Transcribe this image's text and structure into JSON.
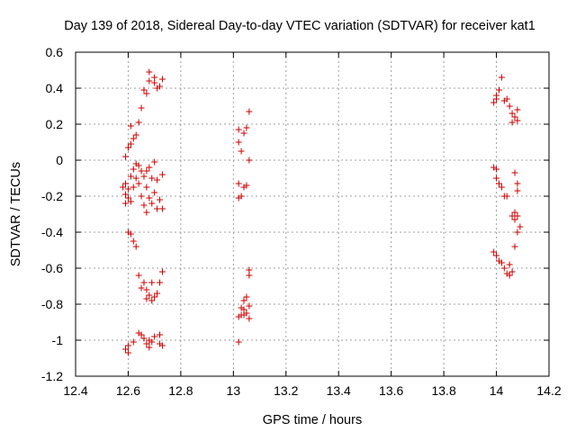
{
  "chart_data": {
    "type": "scatter",
    "title": "Day 139 of 2018, Sidereal Day-to-day VTEC variation (SDTVAR) for receiver kat1",
    "xlabel": "GPS time / hours",
    "ylabel": "SDTVAR / TECUs",
    "xlim": [
      12.4,
      14.2
    ],
    "ylim": [
      -1.2,
      0.6
    ],
    "grid": true,
    "marker": "+",
    "color": "#cc0000",
    "x_ticks": [
      "12.4",
      "12.6",
      "12.8",
      "13",
      "13.2",
      "13.4",
      "13.6",
      "13.8",
      "14",
      "14.2"
    ],
    "y_ticks": [
      "0.6",
      "0.4",
      "0.2",
      "0",
      "-0.2",
      "-0.4",
      "-0.6",
      "-0.8",
      "-1",
      "-1.2"
    ],
    "series": [
      {
        "name": "SDTVAR",
        "points": [
          [
            12.68,
            0.49
          ],
          [
            12.7,
            0.46
          ],
          [
            12.68,
            0.44
          ],
          [
            12.7,
            0.43
          ],
          [
            12.72,
            0.41
          ],
          [
            12.73,
            0.45
          ],
          [
            12.66,
            0.39
          ],
          [
            12.67,
            0.37
          ],
          [
            12.71,
            0.4
          ],
          [
            12.65,
            0.29
          ],
          [
            12.64,
            0.21
          ],
          [
            12.61,
            0.19
          ],
          [
            12.63,
            0.14
          ],
          [
            12.62,
            0.12
          ],
          [
            12.61,
            0.09
          ],
          [
            12.6,
            0.07
          ],
          [
            12.59,
            0.02
          ],
          [
            12.63,
            -0.02
          ],
          [
            12.64,
            -0.03
          ],
          [
            12.62,
            -0.05
          ],
          [
            12.65,
            -0.06
          ],
          [
            12.68,
            -0.04
          ],
          [
            12.7,
            -0.01
          ],
          [
            12.67,
            -0.06
          ],
          [
            12.61,
            -0.09
          ],
          [
            12.63,
            -0.1
          ],
          [
            12.66,
            -0.09
          ],
          [
            12.69,
            -0.1
          ],
          [
            12.71,
            -0.11
          ],
          [
            12.73,
            -0.08
          ],
          [
            12.59,
            -0.13
          ],
          [
            12.6,
            -0.16
          ],
          [
            12.58,
            -0.15
          ],
          [
            12.62,
            -0.15
          ],
          [
            12.64,
            -0.13
          ],
          [
            12.67,
            -0.15
          ],
          [
            12.7,
            -0.18
          ],
          [
            12.59,
            -0.19
          ],
          [
            12.6,
            -0.21
          ],
          [
            12.65,
            -0.2
          ],
          [
            12.68,
            -0.21
          ],
          [
            12.72,
            -0.22
          ],
          [
            12.59,
            -0.24
          ],
          [
            12.61,
            -0.23
          ],
          [
            12.66,
            -0.25
          ],
          [
            12.69,
            -0.24
          ],
          [
            12.71,
            -0.27
          ],
          [
            12.73,
            -0.27
          ],
          [
            12.67,
            -0.29
          ],
          [
            12.6,
            -0.4
          ],
          [
            12.61,
            -0.41
          ],
          [
            12.62,
            -0.45
          ],
          [
            12.63,
            -0.48
          ],
          [
            12.73,
            -0.62
          ],
          [
            12.64,
            -0.64
          ],
          [
            12.66,
            -0.68
          ],
          [
            12.69,
            -0.68
          ],
          [
            12.72,
            -0.68
          ],
          [
            12.65,
            -0.71
          ],
          [
            12.67,
            -0.72
          ],
          [
            12.71,
            -0.74
          ],
          [
            12.68,
            -0.75
          ],
          [
            12.7,
            -0.76
          ],
          [
            12.69,
            -0.78
          ],
          [
            12.67,
            -0.77
          ],
          [
            12.64,
            -0.96
          ],
          [
            12.65,
            -0.97
          ],
          [
            12.66,
            -0.99
          ],
          [
            12.7,
            -0.98
          ],
          [
            12.72,
            -0.97
          ],
          [
            12.68,
            -1.0
          ],
          [
            12.62,
            -1.01
          ],
          [
            12.67,
            -1.02
          ],
          [
            12.69,
            -1.01
          ],
          [
            12.6,
            -1.03
          ],
          [
            12.72,
            -1.02
          ],
          [
            12.73,
            -1.03
          ],
          [
            12.59,
            -1.05
          ],
          [
            12.68,
            -1.04
          ],
          [
            12.6,
            -1.07
          ],
          [
            13.06,
            0.27
          ],
          [
            13.02,
            0.17
          ],
          [
            13.05,
            0.18
          ],
          [
            13.04,
            0.15
          ],
          [
            13.02,
            0.1
          ],
          [
            13.03,
            0.05
          ],
          [
            13.06,
            0.0
          ],
          [
            13.02,
            -0.13
          ],
          [
            13.05,
            -0.14
          ],
          [
            13.04,
            -0.15
          ],
          [
            13.03,
            -0.2
          ],
          [
            13.02,
            -0.21
          ],
          [
            13.06,
            -0.61
          ],
          [
            13.06,
            -0.64
          ],
          [
            13.05,
            -0.76
          ],
          [
            13.04,
            -0.78
          ],
          [
            13.06,
            -0.81
          ],
          [
            13.03,
            -0.82
          ],
          [
            13.04,
            -0.83
          ],
          [
            13.05,
            -0.85
          ],
          [
            13.03,
            -0.86
          ],
          [
            13.02,
            -0.87
          ],
          [
            13.04,
            -0.86
          ],
          [
            13.06,
            -0.88
          ],
          [
            13.02,
            -1.01
          ],
          [
            14.02,
            0.46
          ],
          [
            14.01,
            0.39
          ],
          [
            14.0,
            0.36
          ],
          [
            14.0,
            0.34
          ],
          [
            14.04,
            0.34
          ],
          [
            14.03,
            0.33
          ],
          [
            13.99,
            0.32
          ],
          [
            14.05,
            0.3
          ],
          [
            14.08,
            0.28
          ],
          [
            14.06,
            0.26
          ],
          [
            14.07,
            0.24
          ],
          [
            14.08,
            0.22
          ],
          [
            14.06,
            0.21
          ],
          [
            13.99,
            -0.04
          ],
          [
            14.0,
            -0.05
          ],
          [
            14.07,
            -0.07
          ],
          [
            14.0,
            -0.1
          ],
          [
            14.01,
            -0.13
          ],
          [
            14.08,
            -0.13
          ],
          [
            14.02,
            -0.15
          ],
          [
            14.03,
            -0.2
          ],
          [
            14.04,
            -0.2
          ],
          [
            14.08,
            -0.17
          ],
          [
            14.07,
            -0.29
          ],
          [
            14.06,
            -0.31
          ],
          [
            14.08,
            -0.31
          ],
          [
            14.07,
            -0.33
          ],
          [
            14.09,
            -0.37
          ],
          [
            14.08,
            -0.4
          ],
          [
            14.07,
            -0.48
          ],
          [
            13.99,
            -0.51
          ],
          [
            14.0,
            -0.53
          ],
          [
            14.01,
            -0.56
          ],
          [
            14.02,
            -0.57
          ],
          [
            14.05,
            -0.58
          ],
          [
            14.03,
            -0.6
          ],
          [
            14.06,
            -0.62
          ],
          [
            14.04,
            -0.63
          ],
          [
            14.05,
            -0.64
          ]
        ]
      }
    ]
  }
}
